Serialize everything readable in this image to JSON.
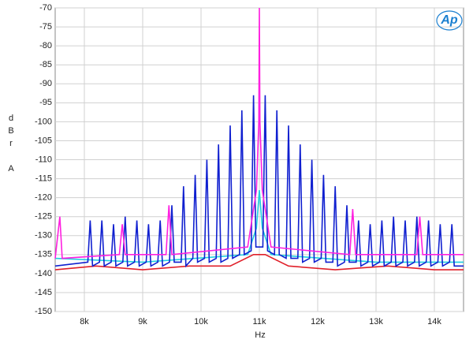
{
  "chart_data": {
    "type": "line",
    "x_label": "Hz",
    "y_label": "dBr A",
    "logo": "Ap",
    "xlim": [
      7500,
      14500
    ],
    "xticks": [
      {
        "value": 8000,
        "label": "8k"
      },
      {
        "value": 9000,
        "label": "9k"
      },
      {
        "value": 10000,
        "label": "10k"
      },
      {
        "value": 11000,
        "label": "11k"
      },
      {
        "value": 12000,
        "label": "12k"
      },
      {
        "value": 13000,
        "label": "13k"
      },
      {
        "value": 14000,
        "label": "14k"
      }
    ],
    "ylim": [
      -150,
      -70
    ],
    "yticks": [
      -70,
      -75,
      -80,
      -85,
      -90,
      -95,
      -100,
      -105,
      -110,
      -115,
      -120,
      -125,
      -130,
      -135,
      -140,
      -145,
      -150
    ],
    "grid": true,
    "series": [
      {
        "name": "red",
        "color": "#e0202a",
        "x": [
          7500,
          8200,
          9000,
          9800,
          10500,
          10900,
          11100,
          11500,
          12300,
          13200,
          14000,
          14500
        ],
        "values": [
          -139,
          -138,
          -139,
          -138,
          -138,
          -135,
          -135,
          -138,
          -139,
          -138,
          -139,
          -139
        ]
      },
      {
        "name": "cyan",
        "color": "#20d0e0",
        "x": [
          7500,
          9000,
          10800,
          10950,
          11000,
          11050,
          11200,
          13000,
          14500
        ],
        "values": [
          -136,
          -137,
          -135,
          -128,
          -118,
          -128,
          -135,
          -137,
          -137
        ]
      },
      {
        "name": "blue",
        "color": "#1020d0",
        "x": [
          7500,
          8060,
          8100,
          8140,
          8260,
          8300,
          8340,
          8460,
          8500,
          8540,
          8660,
          8700,
          8740,
          8860,
          8900,
          8940,
          9060,
          9100,
          9140,
          9260,
          9300,
          9340,
          9460,
          9500,
          9540,
          9660,
          9700,
          9740,
          9860,
          9900,
          9940,
          10060,
          10100,
          10140,
          10260,
          10300,
          10340,
          10460,
          10500,
          10540,
          10660,
          10700,
          10740,
          10860,
          10900,
          10940,
          11060,
          11100,
          11140,
          11260,
          11300,
          11340,
          11460,
          11500,
          11540,
          11660,
          11700,
          11740,
          11860,
          11900,
          11940,
          12060,
          12100,
          12140,
          12260,
          12300,
          12340,
          12460,
          12500,
          12540,
          12660,
          12700,
          12740,
          12860,
          12900,
          12940,
          13060,
          13100,
          13140,
          13260,
          13300,
          13340,
          13460,
          13500,
          13540,
          13660,
          13700,
          13740,
          13860,
          13900,
          13940,
          14060,
          14100,
          14140,
          14260,
          14300,
          14340,
          14500
        ],
        "values": [
          -138,
          -137,
          -126,
          -138,
          -137,
          -126,
          -138,
          -137,
          -127,
          -138,
          -137,
          -125,
          -138,
          -137,
          -126,
          -138,
          -137,
          -127,
          -138,
          -137,
          -126,
          -138,
          -137,
          -122,
          -137,
          -137,
          -117,
          -138,
          -136,
          -114,
          -137,
          -136,
          -110,
          -137,
          -136,
          -106,
          -137,
          -136,
          -101,
          -136,
          -135,
          -97,
          -135,
          -134,
          -93,
          -133,
          -133,
          -93,
          -134,
          -135,
          -97,
          -135,
          -136,
          -101,
          -136,
          -136,
          -106,
          -137,
          -136,
          -110,
          -137,
          -136,
          -114,
          -137,
          -137,
          -117,
          -138,
          -137,
          -122,
          -137,
          -137,
          -126,
          -138,
          -137,
          -127,
          -138,
          -137,
          -126,
          -138,
          -137,
          -125,
          -138,
          -137,
          -126,
          -138,
          -137,
          -125,
          -138,
          -137,
          -126,
          -138,
          -137,
          -127,
          -138,
          -137,
          -127,
          -138,
          -138
        ]
      },
      {
        "name": "magenta",
        "color": "#ff20e0",
        "x": [
          7500,
          7580,
          7620,
          8600,
          8650,
          8700,
          9400,
          9450,
          9500,
          10800,
          10950,
          10990,
          11000,
          11010,
          11050,
          11200,
          12550,
          12600,
          12650,
          13700,
          13750,
          13800,
          14500
        ],
        "values": [
          -136,
          -125,
          -136,
          -135,
          -127,
          -135,
          -135,
          -122,
          -135,
          -133,
          -118,
          -100,
          -70,
          -100,
          -118,
          -133,
          -135,
          -123,
          -135,
          -135,
          -125,
          -135,
          -135
        ]
      }
    ]
  }
}
